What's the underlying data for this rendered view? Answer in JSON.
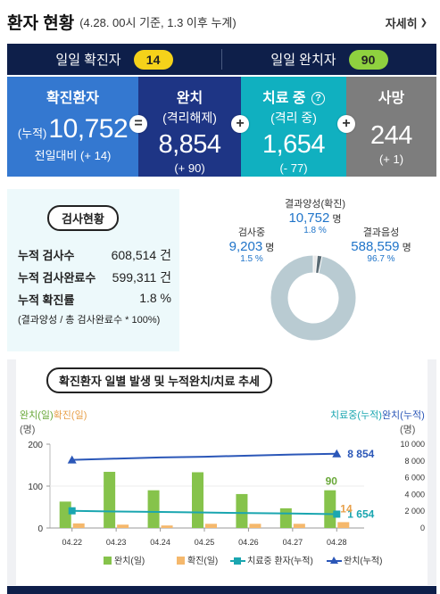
{
  "header": {
    "title": "환자 현황",
    "subtitle": "(4.28. 00시 기준, 1.3 이후 누계)",
    "more_label": "자세히"
  },
  "daily": {
    "confirmed_label": "일일 확진자",
    "confirmed_value": "14",
    "released_label": "일일 완치자",
    "released_value": "90"
  },
  "cards": {
    "confirmed": {
      "title": "확진환자",
      "prefix": "(누적)",
      "value": "10,752",
      "delta": "전일대비 (+ 14)"
    },
    "released": {
      "title": "완치",
      "sub": "(격리해제)",
      "value": "8,854",
      "delta": "(+ 90)"
    },
    "treating": {
      "title": "치료 중",
      "sub": "(격리 중)",
      "value": "1,654",
      "delta": "(- 77)"
    },
    "deaths": {
      "title": "사망",
      "value": "244",
      "delta": "(+ 1)"
    },
    "ops": [
      "=",
      "+",
      "+"
    ],
    "help_glyph": "?"
  },
  "tests": {
    "title": "검사현황",
    "rows": [
      {
        "label": "누적 검사수",
        "value": "608,514 건"
      },
      {
        "label": "누적 검사완료수",
        "value": "599,311 건"
      },
      {
        "label": "누적 확진률",
        "value": "1.8 %"
      }
    ],
    "note": "(결과양성 / 총 검사완료수 * 100%)",
    "ring": {
      "positive": {
        "label": "결과양성(확진)",
        "value": "10,752",
        "unit": "명",
        "pct": "1.8 %",
        "share": 1.8
      },
      "testing": {
        "label": "검사중",
        "value": "9,203",
        "unit": "명",
        "pct": "1.5 %",
        "share": 1.5
      },
      "negative": {
        "label": "결과음성",
        "value": "588,559",
        "unit": "명",
        "pct": "96.7 %",
        "share": 96.7
      }
    }
  },
  "trend": {
    "title": "확진환자 일별 발생 및 누적완치/치료 추세",
    "left_legend_a": "완치(일)",
    "left_legend_b": "확진(일)",
    "left_unit": "(명)",
    "right_legend_a": "치료중(누적)",
    "right_legend_b": "완치(누적)",
    "right_unit": "(명)",
    "legend": [
      "완치(일)",
      "확진(일)",
      "치료중 환자(누적)",
      "완치(누적)"
    ],
    "colors": {
      "released_daily": "#86c34b",
      "confirmed_daily": "#f5b86c",
      "treating_cum": "#1aa6b0",
      "released_cum": "#2b57b8"
    }
  },
  "chart_data": {
    "type": "bar",
    "categories": [
      "04.22",
      "04.23",
      "04.24",
      "04.25",
      "04.26",
      "04.27",
      "04.28"
    ],
    "series": [
      {
        "name": "완치(일)",
        "axis": "left",
        "values": [
          63,
          134,
          90,
          133,
          81,
          47,
          90
        ]
      },
      {
        "name": "확진(일)",
        "axis": "left",
        "values": [
          11,
          8,
          6,
          10,
          10,
          10,
          14
        ]
      },
      {
        "name": "치료중 환자(누적)",
        "axis": "right",
        "type": "line",
        "values": [
          2051,
          1966,
          1920,
          1850,
          1777,
          1731,
          1654
        ]
      },
      {
        "name": "완치(누적)",
        "axis": "right",
        "type": "line",
        "values": [
          8127,
          8277,
          8411,
          8501,
          8635,
          8764,
          8854
        ]
      }
    ],
    "left_ticks": [
      "200",
      "100",
      "0"
    ],
    "right_ticks": [
      "10 000",
      "8 000",
      "6 000",
      "4 000",
      "2 000",
      "0"
    ],
    "ylim_left": [
      0,
      200
    ],
    "ylim_right": [
      0,
      10000
    ],
    "last_labels": {
      "released_daily": "90",
      "confirmed_daily": "14",
      "treating_cum": "1 654",
      "released_cum": "8 854"
    }
  }
}
